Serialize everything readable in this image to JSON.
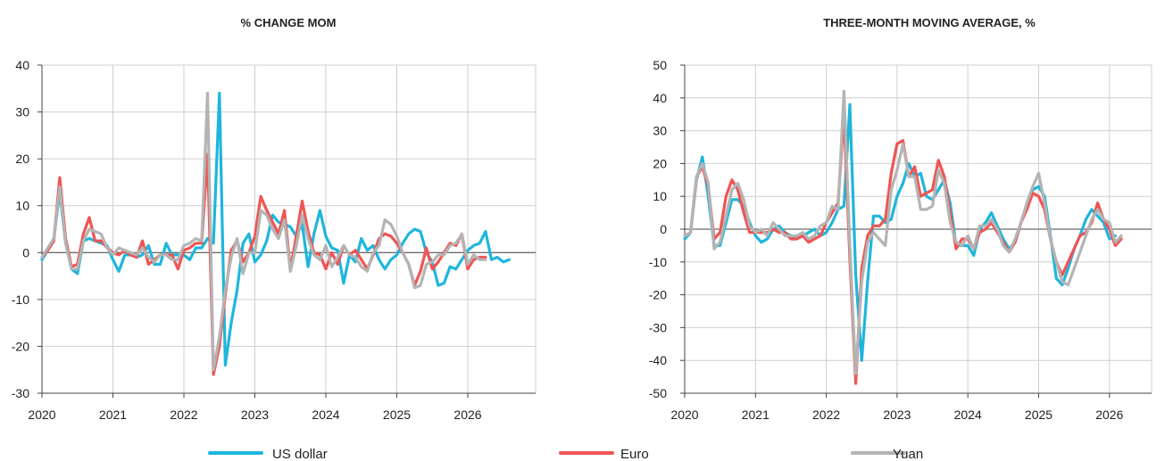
{
  "chart_data": [
    {
      "type": "line",
      "title": "% CHANGE MOM",
      "ylim": [
        -30,
        40
      ],
      "yticks": [
        "40",
        "30",
        "20",
        "10",
        "0",
        "-10",
        "-20",
        "-30"
      ],
      "xticks": [
        "2020",
        "2021",
        "2022",
        "2023",
        "2024",
        "2025",
        "2026"
      ],
      "x_start": 2020.0,
      "x_step_months": 1,
      "grid": true,
      "series": [
        {
          "name": "US dollar",
          "color": "#1fb6dd",
          "values": [
            -1.5,
            0.5,
            3,
            13,
            2,
            -3.5,
            -4.5,
            2.5,
            3,
            2.5,
            2,
            1.5,
            -1.5,
            -4,
            -0.5,
            -0.5,
            -1,
            -0.5,
            1.5,
            -2.5,
            -2.5,
            2,
            -0.5,
            -0.5,
            -0.5,
            -1.5,
            1,
            1,
            3,
            2,
            34,
            -24,
            -15,
            -8,
            2,
            4,
            -2,
            -0.5,
            2.5,
            8,
            6.5,
            6,
            5.5,
            3.5,
            6,
            -3,
            4,
            9,
            3.5,
            1,
            0.5,
            -6.5,
            -0.5,
            -2,
            3,
            0.5,
            1.5,
            -1.5,
            -3.5,
            -1.5,
            -0.5,
            2,
            4,
            5,
            4.5,
            0,
            -2,
            -7,
            -6.5,
            -3,
            -3.5,
            -1.5,
            0.5,
            1.5,
            2,
            4.5,
            -1.5,
            -1,
            -2,
            -1.5
          ]
        },
        {
          "name": "Euro",
          "color": "#f05454",
          "values": [
            -1,
            0.5,
            2.5,
            16,
            3,
            -3,
            -2.5,
            4,
            7.5,
            2.5,
            2.5,
            1,
            0,
            -0.5,
            0.5,
            -0.5,
            -1,
            2.5,
            -2.5,
            -1.5,
            -0.5,
            -0.5,
            -0.5,
            -3.5,
            0.5,
            1,
            2,
            2,
            21,
            -26,
            -20,
            -9,
            0.5,
            2.5,
            -2,
            0,
            3.5,
            12,
            9,
            6.5,
            4,
            9,
            -3.5,
            3.5,
            11,
            4.5,
            0,
            -0.5,
            -3.5,
            0,
            -2.5,
            1.5,
            -0.5,
            0.5,
            -1.5,
            -3.5,
            -0.5,
            3,
            4,
            3.5,
            2,
            0,
            -2.5,
            -7,
            -4,
            1,
            -3.5,
            -2,
            0,
            2,
            1.5,
            4,
            -3.5,
            -1.5,
            -1,
            -1
          ]
        },
        {
          "name": "Yuan",
          "color": "#b4b4b4",
          "values": [
            -1,
            1,
            3,
            14,
            2,
            -3.5,
            -3.5,
            2.5,
            5,
            4.5,
            4,
            1,
            -0.5,
            1,
            0.5,
            0,
            -0.5,
            1,
            -1,
            -2,
            -0.5,
            -0.5,
            -1.5,
            -1.5,
            1.5,
            2,
            3,
            2.5,
            34,
            -25,
            -18,
            -8,
            -1,
            3,
            -4.5,
            0,
            0,
            9,
            8,
            5,
            3,
            7,
            -4,
            1.5,
            8,
            3,
            -0.5,
            -1.5,
            1.5,
            -3,
            -1,
            1.5,
            -0.5,
            -1,
            -3,
            -4,
            0,
            1.5,
            7,
            6,
            3.5,
            0,
            -2.5,
            -7.5,
            -7,
            -2.5,
            -2,
            -0.5,
            -0.5,
            1.5,
            2,
            4,
            -2.5,
            -0.5,
            -1.5,
            -1.5
          ]
        }
      ]
    },
    {
      "type": "line",
      "title": "THREE-MONTH MOVING AVERAGE, %",
      "ylim": [
        -50,
        50
      ],
      "yticks": [
        "50",
        "40",
        "30",
        "20",
        "10",
        "0",
        "-10",
        "-20",
        "-30",
        "-40",
        "-50"
      ],
      "xticks": [
        "2020",
        "2021",
        "2022",
        "2023",
        "2024",
        "2025",
        "2026"
      ],
      "x_start": 2020.0,
      "x_step_months": 1,
      "grid": true,
      "series": [
        {
          "name": "US dollar",
          "color": "#1fb6dd",
          "values": [
            -3,
            -1,
            15,
            22,
            10,
            -5,
            -5,
            2,
            9,
            9,
            7,
            2,
            -2,
            -4,
            -3,
            0,
            1,
            -1,
            -2,
            -3,
            -2,
            -1,
            0,
            -2,
            -1,
            2,
            6,
            7,
            38,
            -14,
            -40,
            -16,
            4,
            4,
            2,
            3,
            10,
            14,
            20,
            16,
            17,
            10,
            9,
            12,
            15,
            8,
            -5,
            -5,
            -5,
            -8,
            0,
            2,
            5,
            1,
            -3,
            -6,
            -4,
            2,
            7,
            12,
            13,
            10,
            -2,
            -15,
            -17,
            -12,
            -6,
            -2,
            3,
            6,
            4,
            2,
            -3,
            -2
          ]
        },
        {
          "name": "Euro",
          "color": "#f05454",
          "values": [
            -2,
            -1,
            16,
            19,
            13,
            -3,
            -1,
            10,
            15,
            12,
            5,
            -1,
            -1,
            -1,
            -1,
            0,
            -1,
            -1,
            -3,
            -3,
            -2,
            -4,
            -3,
            -2,
            2,
            5,
            8,
            35,
            -9,
            -47,
            -12,
            -2,
            1,
            1,
            3,
            17,
            26,
            27,
            16,
            19,
            10,
            11,
            12,
            21,
            16,
            5,
            -6,
            -3,
            -3,
            -6,
            -1,
            0,
            2,
            -1,
            -4,
            -7,
            -4,
            2,
            6,
            11,
            10,
            6,
            -3,
            -10,
            -14,
            -10,
            -6,
            -2,
            -1,
            2,
            8,
            3,
            0,
            -5,
            -3
          ]
        },
        {
          "name": "Yuan",
          "color": "#b4b4b4",
          "values": [
            -2,
            -1,
            16,
            20,
            14,
            -6,
            -4,
            4,
            12,
            14,
            9,
            1,
            -1,
            0,
            -2,
            2,
            0,
            -2,
            -2,
            -2,
            -1,
            -3,
            -2,
            1,
            2,
            7,
            6,
            42,
            -5,
            -44,
            -16,
            -4,
            -1,
            -3,
            -5,
            12,
            18,
            26,
            16,
            16,
            6,
            6,
            7,
            18,
            14,
            2,
            -4,
            -5,
            -2,
            -6,
            1,
            1,
            3,
            0,
            -5,
            -7,
            -3,
            2,
            8,
            13,
            17,
            8,
            -3,
            -10,
            -16,
            -17,
            -12,
            -7,
            -2,
            3,
            6,
            3,
            2,
            -4,
            -2
          ]
        }
      ]
    }
  ],
  "legend": [
    {
      "label": "US dollar",
      "color": "#1fb6dd"
    },
    {
      "label": "Euro",
      "color": "#f05454"
    },
    {
      "label": "Yuan",
      "color": "#b4b4b4"
    }
  ]
}
